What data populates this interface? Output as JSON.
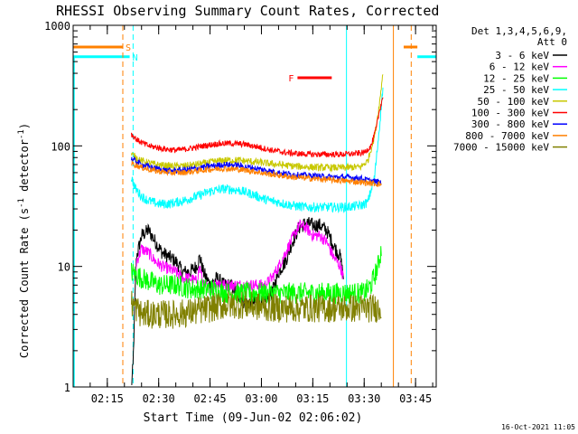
{
  "chart_data": {
    "type": "line",
    "title": "RHESSI Observing Summary Count Rates, Corrected",
    "xlabel": "Start Time (09-Jun-02 02:06:02)",
    "ylabel_parts": {
      "main": "Corrected Count Rate (s",
      "exp1": "-1",
      "mid": " detector",
      "exp2": "-1",
      "end": ")"
    },
    "y_scale": "log",
    "ylim": [
      1,
      1000
    ],
    "y_ticks": [
      {
        "v": 1,
        "label": "1"
      },
      {
        "v": 10,
        "label": "10"
      },
      {
        "v": 100,
        "label": "100"
      },
      {
        "v": 1000,
        "label": "1000"
      }
    ],
    "x_range_min": [
      0,
      106
    ],
    "x_ticks": [
      {
        "m": 9.97,
        "label": "02:15"
      },
      {
        "m": 24.97,
        "label": "02:30"
      },
      {
        "m": 39.97,
        "label": "02:45"
      },
      {
        "m": 54.97,
        "label": "03:00"
      },
      {
        "m": 69.97,
        "label": "03:15"
      },
      {
        "m": 84.97,
        "label": "03:30"
      },
      {
        "m": 99.97,
        "label": "03:45"
      }
    ],
    "legend": {
      "header": [
        "Det 1,3,4,5,6,9,",
        "Att 0"
      ],
      "entries": [
        {
          "label": "3 - 6 keV",
          "color": "#000000"
        },
        {
          "label": "6 - 12 keV",
          "color": "#ff00ff"
        },
        {
          "label": "12 - 25 keV",
          "color": "#00ff00"
        },
        {
          "label": "25 - 50 keV",
          "color": "#00ffff"
        },
        {
          "label": "50 - 100 keV",
          "color": "#c8c800"
        },
        {
          "label": "100 - 300 keV",
          "color": "#ff0000"
        },
        {
          "label": "300 - 800 keV",
          "color": "#0000ff"
        },
        {
          "label": "800 - 7000 keV",
          "color": "#ff8000"
        },
        {
          "label": "7000 - 15000 keV",
          "color": "#808000"
        }
      ]
    },
    "series": [
      {
        "name": "3 - 6 keV",
        "color": "#000000",
        "noise": 0.06,
        "points": [
          [
            17,
            1
          ],
          [
            17.5,
            1.5
          ],
          [
            18,
            5
          ],
          [
            18.5,
            12
          ],
          [
            20,
            18
          ],
          [
            22,
            20
          ],
          [
            24,
            16
          ],
          [
            26,
            13
          ],
          [
            28,
            12
          ],
          [
            30,
            11
          ],
          [
            32,
            9
          ],
          [
            34,
            9
          ],
          [
            36,
            10
          ],
          [
            37,
            12
          ],
          [
            38,
            9
          ],
          [
            40,
            7
          ],
          [
            42,
            8
          ],
          [
            44,
            7
          ],
          [
            46,
            7
          ],
          [
            48,
            6
          ],
          [
            50,
            5
          ],
          [
            52,
            5
          ],
          [
            54,
            5
          ],
          [
            56,
            5
          ],
          [
            58,
            6
          ],
          [
            60,
            9
          ],
          [
            62,
            11
          ],
          [
            64,
            16
          ],
          [
            66,
            21
          ],
          [
            68,
            23
          ],
          [
            70,
            22
          ],
          [
            72,
            22
          ],
          [
            74,
            20
          ],
          [
            76,
            15
          ],
          [
            78,
            12
          ],
          [
            79,
            8
          ]
        ]
      },
      {
        "name": "6 - 12 keV",
        "color": "#ff00ff",
        "noise": 0.05,
        "points": [
          [
            18,
            7
          ],
          [
            18.5,
            11
          ],
          [
            20,
            14
          ],
          [
            22,
            13
          ],
          [
            24,
            11
          ],
          [
            26,
            10
          ],
          [
            28,
            9.5
          ],
          [
            30,
            9
          ],
          [
            32,
            8
          ],
          [
            34,
            8
          ],
          [
            36,
            7.5
          ],
          [
            37,
            10
          ],
          [
            38,
            7
          ],
          [
            40,
            6.5
          ],
          [
            42,
            7.5
          ],
          [
            44,
            7
          ],
          [
            46,
            7
          ],
          [
            48,
            7
          ],
          [
            50,
            7
          ],
          [
            52,
            7
          ],
          [
            54,
            7
          ],
          [
            56,
            7
          ],
          [
            58,
            8
          ],
          [
            60,
            10
          ],
          [
            62,
            13
          ],
          [
            64,
            17
          ],
          [
            66,
            22
          ],
          [
            68,
            21
          ],
          [
            70,
            18
          ],
          [
            72,
            18
          ],
          [
            74,
            16
          ],
          [
            76,
            12
          ],
          [
            78,
            10
          ],
          [
            79,
            8
          ]
        ]
      },
      {
        "name": "12 - 25 keV",
        "color": "#00ff00",
        "noise": 0.09,
        "points": [
          [
            17,
            9
          ],
          [
            20,
            8
          ],
          [
            25,
            7
          ],
          [
            30,
            7
          ],
          [
            35,
            6.5
          ],
          [
            40,
            6.5
          ],
          [
            45,
            6
          ],
          [
            50,
            6
          ],
          [
            55,
            6
          ],
          [
            60,
            6
          ],
          [
            65,
            6
          ],
          [
            70,
            6
          ],
          [
            75,
            6
          ],
          [
            80,
            6
          ],
          [
            85,
            6
          ],
          [
            87,
            7
          ],
          [
            89,
            10
          ],
          [
            90,
            14
          ]
        ]
      },
      {
        "name": "25 - 50 keV",
        "color": "#00ffff",
        "noise": 0.04,
        "points": [
          [
            17,
            55
          ],
          [
            18,
            45
          ],
          [
            20,
            38
          ],
          [
            22,
            35
          ],
          [
            25,
            33
          ],
          [
            28,
            33
          ],
          [
            32,
            35
          ],
          [
            36,
            38
          ],
          [
            40,
            42
          ],
          [
            44,
            44
          ],
          [
            48,
            43
          ],
          [
            52,
            40
          ],
          [
            56,
            36
          ],
          [
            60,
            34
          ],
          [
            64,
            32
          ],
          [
            68,
            31
          ],
          [
            72,
            31
          ],
          [
            76,
            31
          ],
          [
            80,
            31
          ],
          [
            84,
            32
          ],
          [
            86,
            34
          ],
          [
            88,
            55
          ],
          [
            89.5,
            150
          ],
          [
            90.5,
            320
          ]
        ]
      },
      {
        "name": "50 - 100 keV",
        "color": "#c8c800",
        "noise": 0.03,
        "points": [
          [
            17,
            85
          ],
          [
            20,
            75
          ],
          [
            24,
            70
          ],
          [
            28,
            68
          ],
          [
            32,
            68
          ],
          [
            36,
            70
          ],
          [
            40,
            73
          ],
          [
            44,
            76
          ],
          [
            48,
            76
          ],
          [
            52,
            74
          ],
          [
            56,
            72
          ],
          [
            60,
            70
          ],
          [
            64,
            68
          ],
          [
            68,
            67
          ],
          [
            72,
            66
          ],
          [
            76,
            66
          ],
          [
            80,
            66
          ],
          [
            84,
            67
          ],
          [
            86,
            75
          ],
          [
            88,
            120
          ],
          [
            89.5,
            230
          ],
          [
            90.5,
            430
          ]
        ]
      },
      {
        "name": "100 - 300 keV",
        "color": "#ff0000",
        "noise": 0.025,
        "points": [
          [
            17,
            125
          ],
          [
            19,
            110
          ],
          [
            22,
            100
          ],
          [
            26,
            95
          ],
          [
            30,
            92
          ],
          [
            34,
            95
          ],
          [
            38,
            100
          ],
          [
            42,
            104
          ],
          [
            46,
            105
          ],
          [
            50,
            103
          ],
          [
            54,
            98
          ],
          [
            58,
            92
          ],
          [
            62,
            88
          ],
          [
            66,
            86
          ],
          [
            70,
            85
          ],
          [
            74,
            85
          ],
          [
            78,
            85
          ],
          [
            82,
            86
          ],
          [
            85,
            88
          ],
          [
            87,
            100
          ],
          [
            88.5,
            140
          ],
          [
            89.5,
            200
          ],
          [
            90.5,
            260
          ]
        ]
      },
      {
        "name": "300 - 800 keV",
        "color": "#0000ff",
        "noise": 0.025,
        "points": [
          [
            17,
            78
          ],
          [
            20,
            70
          ],
          [
            24,
            65
          ],
          [
            28,
            62
          ],
          [
            32,
            63
          ],
          [
            36,
            65
          ],
          [
            40,
            68
          ],
          [
            44,
            70
          ],
          [
            48,
            69
          ],
          [
            52,
            66
          ],
          [
            56,
            63
          ],
          [
            60,
            60
          ],
          [
            64,
            58
          ],
          [
            68,
            57
          ],
          [
            72,
            56
          ],
          [
            76,
            55
          ],
          [
            80,
            55
          ],
          [
            84,
            54
          ],
          [
            87,
            51
          ],
          [
            90,
            50
          ]
        ]
      },
      {
        "name": "800 - 7000 keV",
        "color": "#ff8000",
        "noise": 0.025,
        "points": [
          [
            17,
            72
          ],
          [
            20,
            66
          ],
          [
            24,
            62
          ],
          [
            28,
            60
          ],
          [
            32,
            60
          ],
          [
            36,
            62
          ],
          [
            40,
            64
          ],
          [
            44,
            65
          ],
          [
            48,
            64
          ],
          [
            52,
            62
          ],
          [
            56,
            59
          ],
          [
            60,
            57
          ],
          [
            64,
            55
          ],
          [
            68,
            54
          ],
          [
            72,
            53
          ],
          [
            76,
            52
          ],
          [
            80,
            51
          ],
          [
            84,
            50
          ],
          [
            87,
            49
          ],
          [
            90,
            48
          ]
        ]
      },
      {
        "name": "7000 - 15000 keV",
        "color": "#808000",
        "noise": 0.12,
        "points": [
          [
            17,
            5
          ],
          [
            20,
            4
          ],
          [
            25,
            4
          ],
          [
            30,
            4
          ],
          [
            35,
            4.2
          ],
          [
            40,
            4.5
          ],
          [
            45,
            4.8
          ],
          [
            50,
            4.8
          ],
          [
            55,
            4.6
          ],
          [
            60,
            4.5
          ],
          [
            65,
            4.5
          ],
          [
            70,
            4.5
          ],
          [
            75,
            4.5
          ],
          [
            80,
            4.5
          ],
          [
            85,
            4.5
          ],
          [
            90,
            4.5
          ]
        ]
      }
    ],
    "flags": [
      {
        "label": "S",
        "color": "#ff8000",
        "y_frac": 0.06,
        "x0": 0,
        "x1": 14.5
      },
      {
        "label": "N",
        "color": "#00ffff",
        "y_frac": 0.087,
        "x0": 0,
        "x1": 16.5
      },
      {
        "label": "F",
        "color": "#ff0000",
        "y_frac": 0.145,
        "x0": 65.5,
        "x1": 75.5
      }
    ],
    "attenuator_flag_right": {
      "color": "#ff8000",
      "x0": 96.5,
      "x1": 100.5
    },
    "nighttime_flag_right": {
      "color": "#00ffff",
      "x0": 100.5,
      "x1": 106
    },
    "vlines": [
      {
        "m": 14.5,
        "color": "#ff8000",
        "style": "dashed"
      },
      {
        "m": 17.5,
        "color": "#00ffff",
        "style": "dashed"
      },
      {
        "m": 79.8,
        "color": "#00ffff",
        "style": "solid"
      },
      {
        "m": 93.5,
        "color": "#ff8000",
        "style": "solid"
      },
      {
        "m": 98.7,
        "color": "#ff8000",
        "style": "dashed"
      }
    ],
    "timestamp": "16-Oct-2021 11:05"
  }
}
